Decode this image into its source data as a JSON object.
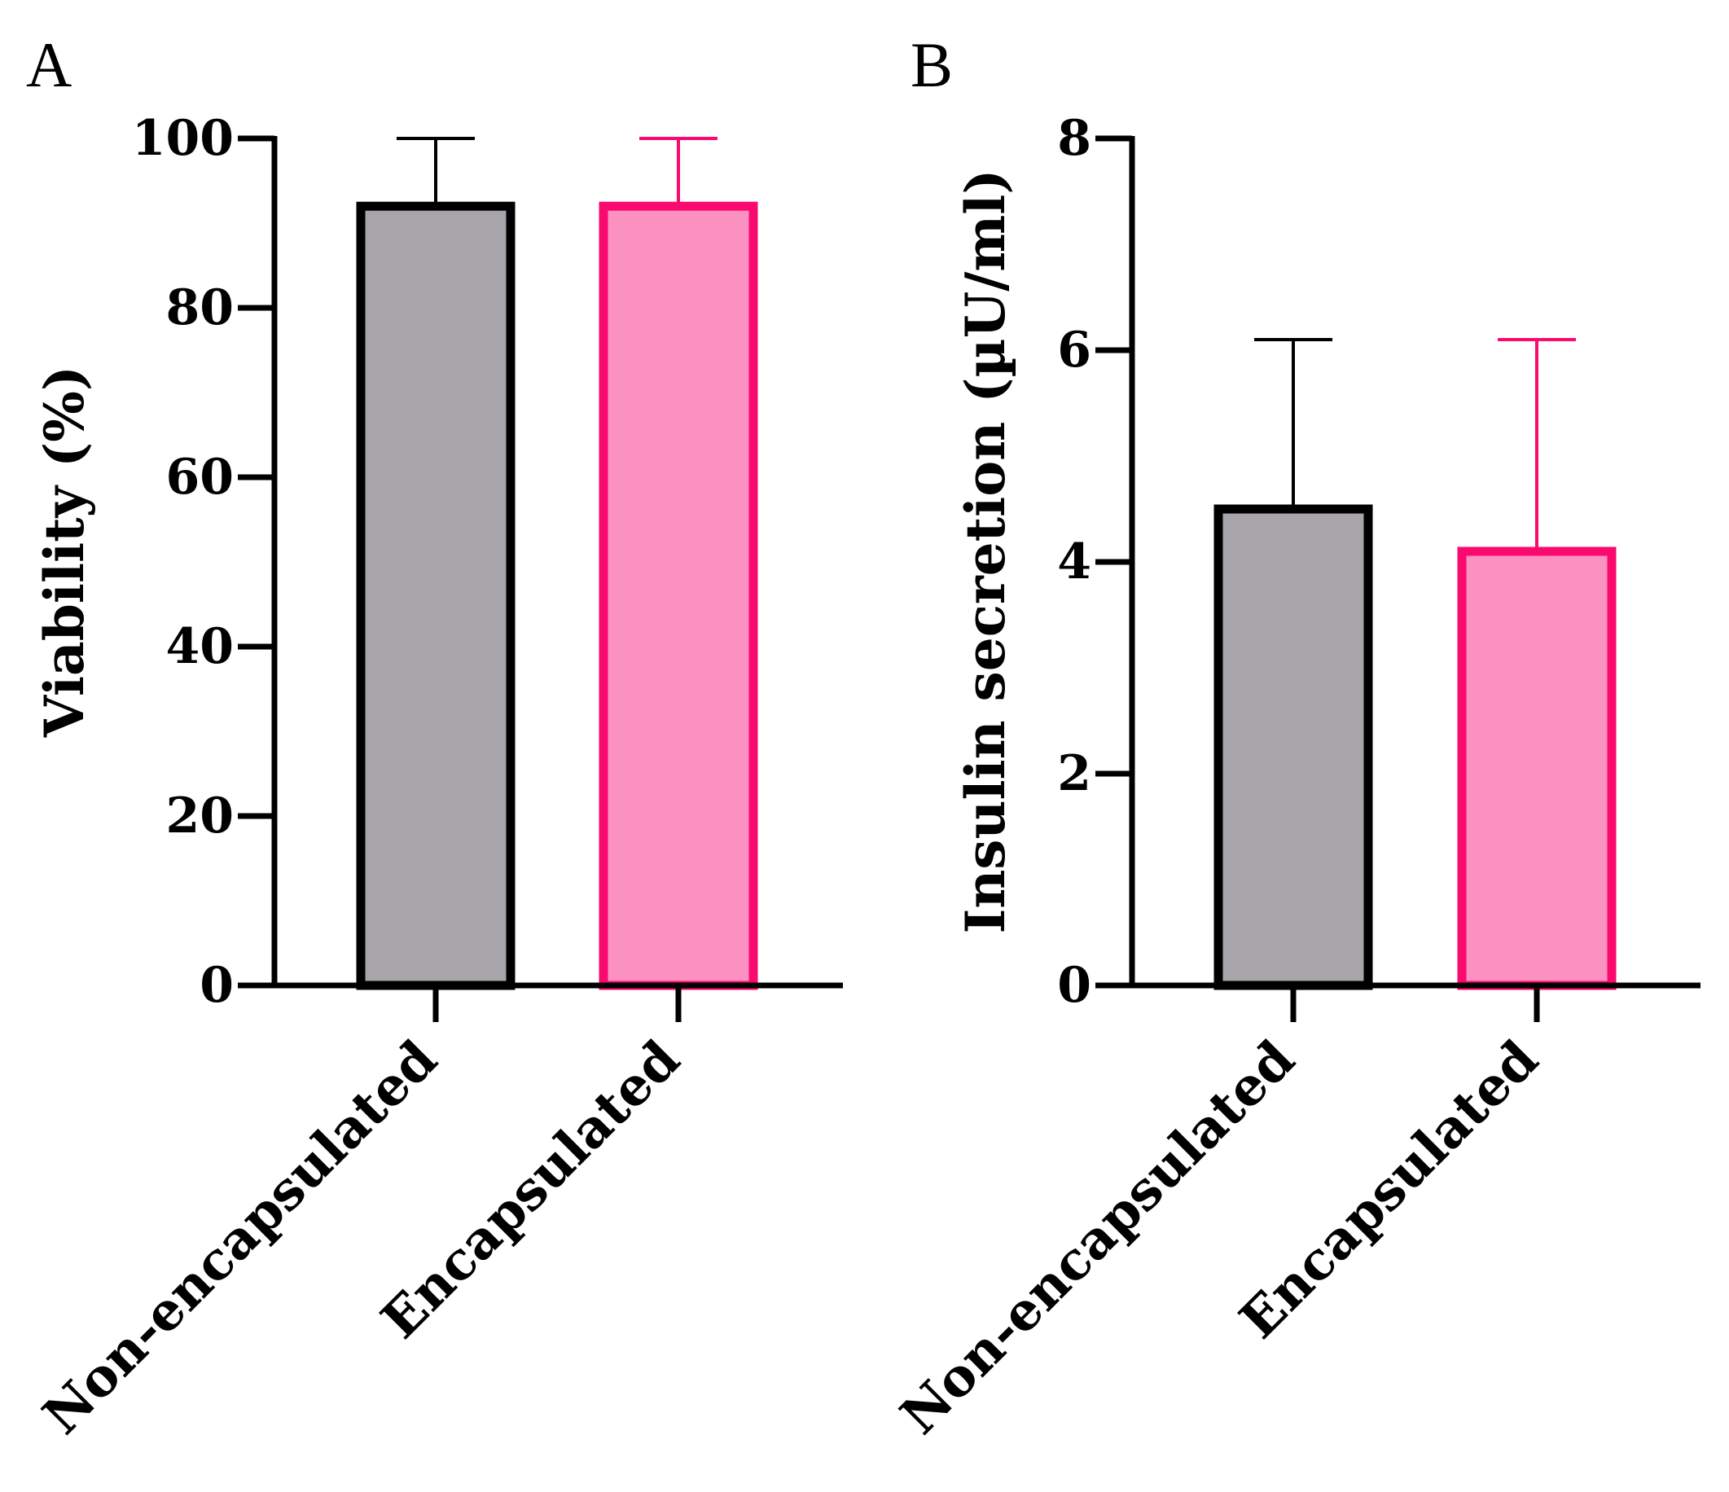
{
  "colors": {
    "axis": "#000000",
    "gray_fill": "#a7a5aa",
    "gray_stroke": "#000000",
    "pink_fill": "#fa91c0",
    "pink_stroke": "#fa0a6e"
  },
  "chart_data": [
    {
      "panel_label": "A",
      "type": "bar",
      "title": "",
      "xlabel": "",
      "ylabel": "Viability (%)",
      "ylim": [
        0,
        100
      ],
      "yticks": [
        "0",
        "20",
        "40",
        "60",
        "80",
        "100"
      ],
      "categories": [
        "Non-encapsulated",
        "Encapsulated"
      ],
      "values": [
        92,
        92
      ],
      "errors": [
        8,
        8
      ],
      "bar_styles": [
        "gray",
        "pink"
      ]
    },
    {
      "panel_label": "B",
      "type": "bar",
      "title": "",
      "xlabel": "",
      "ylabel": "Insulin secretion (µU/ml)",
      "ylim": [
        0,
        8
      ],
      "yticks": [
        "0",
        "2",
        "4",
        "6",
        "8"
      ],
      "categories": [
        "Non-encapsulated",
        "Encapsulated"
      ],
      "values": [
        4.5,
        4.1
      ],
      "errors": [
        1.6,
        2.0
      ],
      "bar_styles": [
        "gray",
        "pink"
      ]
    }
  ]
}
